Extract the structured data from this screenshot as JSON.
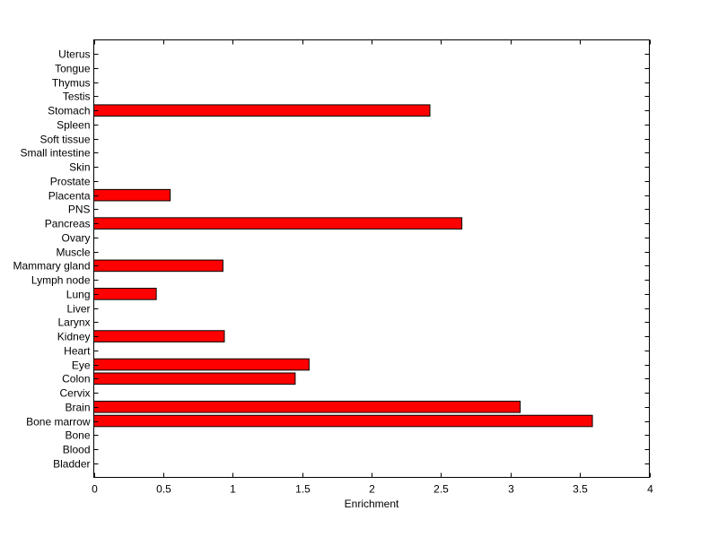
{
  "chart_data": {
    "type": "bar",
    "orientation": "horizontal",
    "categories": [
      "Bladder",
      "Blood",
      "Bone",
      "Bone marrow",
      "Brain",
      "Cervix",
      "Colon",
      "Eye",
      "Heart",
      "Kidney",
      "Larynx",
      "Liver",
      "Lung",
      "Lymph node",
      "Mammary gland",
      "Muscle",
      "Ovary",
      "Pancreas",
      "PNS",
      "Placenta",
      "Prostate",
      "Skin",
      "Small intestine",
      "Soft tissue",
      "Spleen",
      "Stomach",
      "Testis",
      "Thymus",
      "Tongue",
      "Uterus"
    ],
    "values": [
      0,
      0,
      0,
      3.59,
      3.07,
      0,
      1.45,
      1.55,
      0,
      0.94,
      0,
      0,
      0.45,
      0,
      0.93,
      0,
      0,
      2.65,
      0,
      0.55,
      0,
      0,
      0,
      0,
      0,
      2.42,
      0,
      0,
      0,
      0
    ],
    "xlabel": "Enrichment",
    "xlim": [
      0,
      4
    ],
    "xticks": [
      0,
      0.5,
      1,
      1.5,
      2,
      2.5,
      3,
      3.5,
      4
    ],
    "xtick_labels": [
      "0",
      "0.5",
      "1",
      "1.5",
      "2",
      "2.5",
      "3",
      "3.5",
      "4"
    ],
    "bar_color": "#ff0000",
    "bar_edge_color": "#000000",
    "grid": false
  }
}
